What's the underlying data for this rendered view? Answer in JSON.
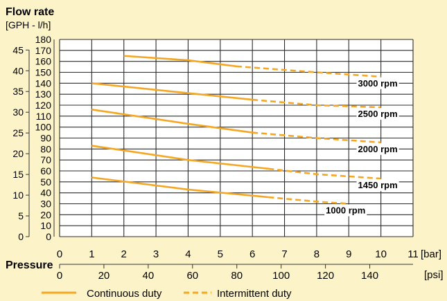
{
  "chart_data": {
    "type": "line",
    "title": "Flow rate",
    "subtitle": "[GPH - l/h]",
    "xlabel": "Pressure",
    "x_units": {
      "primary": "[bar]",
      "secondary": "[psi]"
    },
    "x_bar_range": [
      0,
      11
    ],
    "x_bar_ticks": [
      "0",
      "1",
      "2",
      "3",
      "4",
      "5",
      "6",
      "7",
      "8",
      "9",
      "10",
      "11"
    ],
    "x_psi_ticks": [
      "0",
      "20",
      "40",
      "60",
      "80",
      "100",
      "120",
      "140"
    ],
    "y_lh_range": [
      0,
      180
    ],
    "y_lh_ticks": [
      "0",
      "10",
      "20",
      "30",
      "40",
      "50",
      "60",
      "70",
      "80",
      "90",
      "100",
      "110",
      "120",
      "130",
      "140",
      "150",
      "160",
      "170",
      "180"
    ],
    "y_gph_ticks": [
      "0",
      "5",
      "10",
      "15",
      "20",
      "25",
      "30",
      "35",
      "40",
      "45"
    ],
    "grid": true,
    "legend_position": "bottom",
    "colors": {
      "line": "#f5a623",
      "grid": "#2a2a2a",
      "background": "#fdf3c9",
      "plot_background": "#ffffff"
    },
    "legend": {
      "continuous": "Continuous duty",
      "intermittent": "Intermittent duty"
    },
    "series": [
      {
        "name": "3000 rpm",
        "continuous": [
          [
            2,
            165
          ],
          [
            4,
            161
          ],
          [
            5.5,
            155.5
          ]
        ],
        "intermittent": [
          [
            5.5,
            155.5
          ],
          [
            8,
            150
          ],
          [
            10,
            146
          ]
        ]
      },
      {
        "name": "2500 rpm",
        "continuous": [
          [
            1,
            140
          ],
          [
            4,
            131
          ],
          [
            6,
            125
          ]
        ],
        "intermittent": [
          [
            6,
            125
          ],
          [
            8,
            120
          ],
          [
            10,
            118
          ]
        ]
      },
      {
        "name": "2000 rpm",
        "continuous": [
          [
            1,
            116
          ],
          [
            4,
            103
          ],
          [
            6,
            95
          ]
        ],
        "intermittent": [
          [
            6,
            95
          ],
          [
            8,
            90
          ],
          [
            10,
            86
          ]
        ]
      },
      {
        "name": "1450 rpm",
        "continuous": [
          [
            1,
            83
          ],
          [
            4,
            70
          ],
          [
            6.5,
            62
          ]
        ],
        "intermittent": [
          [
            6.5,
            62
          ],
          [
            8,
            57
          ],
          [
            10,
            53
          ]
        ]
      },
      {
        "name": "1000 rpm",
        "continuous": [
          [
            1,
            54
          ],
          [
            4,
            43
          ],
          [
            6.5,
            36
          ]
        ],
        "intermittent": [
          [
            6.5,
            36
          ],
          [
            8,
            32
          ],
          [
            9,
            30
          ]
        ]
      }
    ]
  }
}
